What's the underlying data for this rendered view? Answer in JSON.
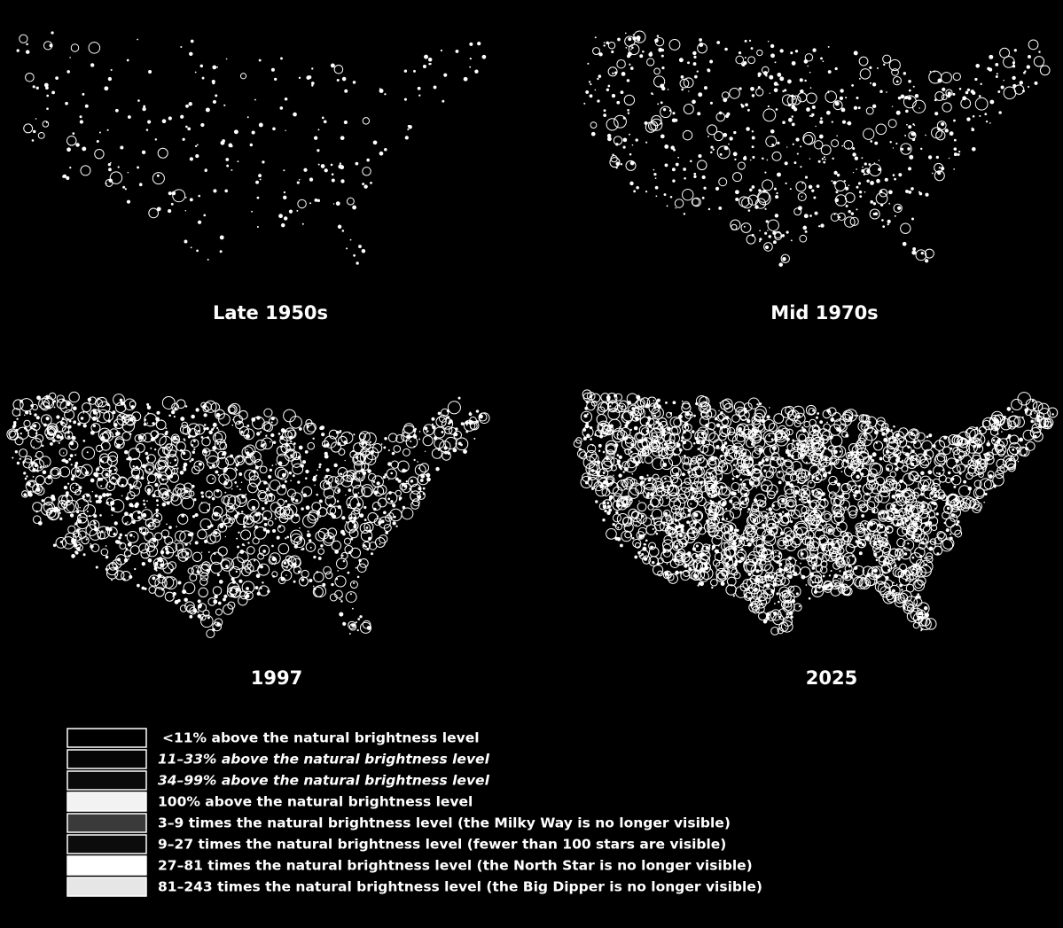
{
  "panels": [
    {
      "label": "Late 1950s"
    },
    {
      "label": "Mid 1970s"
    },
    {
      "label": "1997"
    },
    {
      "label": "2025"
    }
  ],
  "legend": [
    {
      "label": "<11% above the natural brightness level",
      "color": "#000000"
    },
    {
      "label": "11–33% above the natural brightness level",
      "color": "#050505"
    },
    {
      "label": "34–99% above the natural brightness level",
      "color": "#0a0a0a"
    },
    {
      "label": "100% above the natural brightness level",
      "color": "#f2f2f2"
    },
    {
      "label": "3–9 times the natural brightness level (the Milky Way is no longer visible)",
      "color": "#3a3a3a"
    },
    {
      "label": "9–27 times the natural brightness level (fewer than 100 stars are visible)",
      "color": "#0c0c0c"
    },
    {
      "label": "27–81 times the natural brightness level (the North Star is no longer visible)",
      "color": "#ffffff"
    },
    {
      "label": "81–243 times the natural brightness level (the Big Dipper is no longer visible)",
      "color": "#e6e6e6"
    }
  ]
}
